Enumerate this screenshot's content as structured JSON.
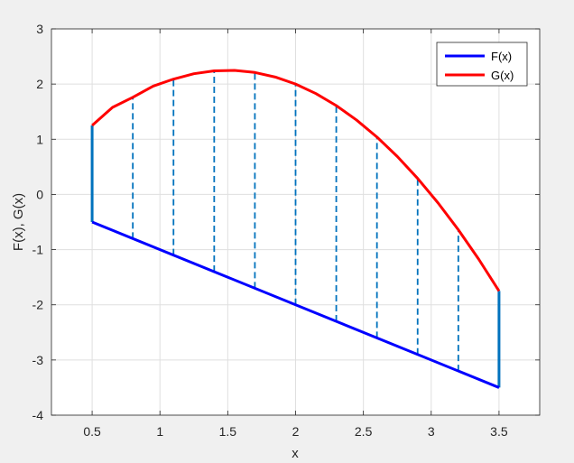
{
  "chart_data": {
    "type": "line",
    "xlabel": "x",
    "ylabel": "F(x), G(x)",
    "xlim": [
      0.2,
      3.8
    ],
    "ylim": [
      -4,
      3
    ],
    "xticks": [
      0.5,
      1,
      1.5,
      2,
      2.5,
      3,
      3.5
    ],
    "xtick_labels": [
      "0.5",
      "1",
      "1.5",
      "2",
      "2.5",
      "3",
      "3.5"
    ],
    "yticks": [
      -4,
      -3,
      -2,
      -1,
      0,
      1,
      2,
      3
    ],
    "ytick_labels": [
      "-4",
      "-3",
      "-2",
      "-1",
      "0",
      "1",
      "2",
      "3"
    ],
    "grid": true,
    "legend_position": "top-right",
    "series": [
      {
        "name": "F(x)",
        "color": "#0000ff",
        "x": [
          0.5,
          3.5
        ],
        "y": [
          -0.5,
          -3.5
        ]
      },
      {
        "name": "G(x)",
        "color": "#ff0000",
        "x": [
          0.5,
          0.65,
          0.8,
          0.95,
          1.1,
          1.25,
          1.4,
          1.55,
          1.7,
          1.85,
          2.0,
          2.15,
          2.3,
          2.45,
          2.6,
          2.75,
          2.9,
          3.05,
          3.2,
          3.35,
          3.5
        ],
        "y": [
          1.25,
          1.5775,
          1.76,
          1.9625,
          2.09,
          2.1875,
          2.24,
          2.2475,
          2.21,
          2.1275,
          2.0,
          1.8275,
          1.61,
          1.3475,
          1.04,
          0.6875,
          0.29,
          -0.1525,
          -0.64,
          -1.1725,
          -1.75
        ]
      }
    ],
    "vertical_segments": {
      "color": "#0072bd",
      "x": [
        0.8,
        1.1,
        1.4,
        1.7,
        2.0,
        2.3,
        2.6,
        2.9,
        3.2
      ],
      "y_bottom": [
        -0.8,
        -1.1,
        -1.4,
        -1.7,
        -2.0,
        -2.3,
        -2.6,
        -2.9,
        -3.2
      ],
      "y_top": [
        1.76,
        2.09,
        2.24,
        2.21,
        2.0,
        1.61,
        1.04,
        0.29,
        -0.64
      ]
    },
    "boundary_segments": {
      "color": "#0072bd",
      "x": [
        0.5,
        3.5
      ],
      "y_bottom": [
        -0.5,
        -3.5
      ],
      "y_top": [
        1.25,
        -1.75
      ]
    }
  }
}
